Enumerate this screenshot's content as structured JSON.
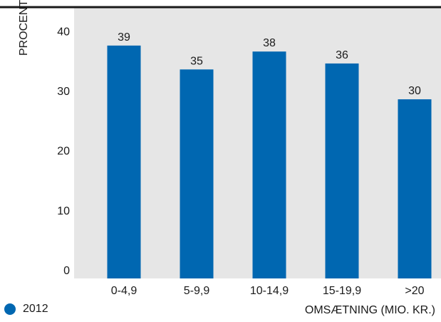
{
  "chart_data": {
    "type": "bar",
    "categories": [
      "0-4,9",
      "5-9,9",
      "10-14,9",
      "15-19,9",
      ">20"
    ],
    "series": [
      {
        "name": "2012",
        "values": [
          39,
          35,
          38,
          36,
          30
        ]
      }
    ],
    "data_labels": [
      "39",
      "35",
      "38",
      "36",
      "30"
    ],
    "ylabel": "PROCENT",
    "xlabel": "OMSÆTNING (MIO. KR.)",
    "ylim": [
      0,
      44
    ],
    "yticks": [
      0,
      10,
      20,
      30,
      40
    ],
    "grid": false,
    "legend_position": "bottom-left",
    "colors": {
      "bar": "#0067b1",
      "plot_background": "#e6e6e6",
      "top_rule": "#1a1a1a",
      "tick_mark": "#ffffff"
    }
  }
}
